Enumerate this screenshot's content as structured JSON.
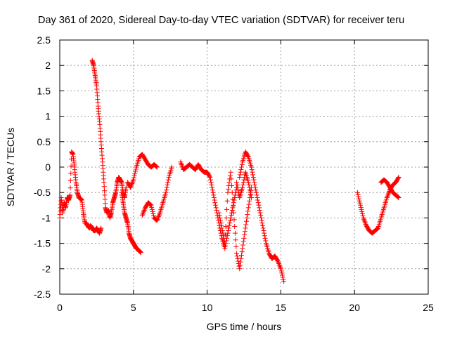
{
  "chart_data": {
    "type": "scatter",
    "title": "Day 361 of 2020, Sidereal Day-to-day VTEC variation (SDTVAR) for receiver teru",
    "xlabel": "GPS time / hours",
    "ylabel": "SDTVAR / TECUs",
    "xlim": [
      0,
      25
    ],
    "ylim": [
      -2.5,
      2.5
    ],
    "x_ticks": [
      0,
      5,
      10,
      15,
      20,
      25
    ],
    "x_tick_labels": [
      "0",
      "5",
      "10",
      "15",
      "20",
      "25"
    ],
    "y_ticks": [
      -2.5,
      -2,
      -1.5,
      -1,
      -0.5,
      0,
      0.5,
      1,
      1.5,
      2,
      2.5
    ],
    "y_tick_labels": [
      "-2.5",
      "-2",
      "-1.5",
      "-1",
      "-0.5",
      "0",
      "0.5",
      "1",
      "1.5",
      "2",
      "2.5"
    ],
    "grid": true,
    "marker": "+",
    "series": [
      {
        "name": "SDTVAR",
        "color": "#ff0000",
        "segments": [
          {
            "x": [
              0.0,
              0.1,
              0.2,
              0.3,
              0.4,
              0.5,
              0.6,
              0.7,
              0.8,
              0.9,
              1.0,
              1.1,
              1.2,
              1.3,
              1.4,
              1.5,
              1.6,
              1.7,
              1.8,
              1.9,
              2.0,
              2.1,
              2.2,
              2.3,
              2.4,
              2.5,
              2.6,
              2.7,
              2.8
            ],
            "y": [
              -1.0,
              -0.6,
              -0.9,
              -0.7,
              -0.8,
              -0.6,
              -0.65,
              -0.55,
              0.3,
              0.25,
              0.0,
              -0.3,
              -0.5,
              -0.6,
              -0.62,
              -0.65,
              -0.9,
              -1.1,
              -1.1,
              -1.15,
              -1.2,
              -1.15,
              -1.2,
              -1.25,
              -1.25,
              -1.2,
              -1.25,
              -1.3,
              -1.2
            ]
          },
          {
            "x": [
              2.2,
              2.3,
              2.4,
              2.5,
              2.6,
              2.7,
              2.8,
              2.9,
              3.0,
              3.1,
              3.2,
              3.3,
              3.4,
              3.5,
              3.6,
              3.7,
              3.8,
              3.9,
              4.0,
              4.1,
              4.2,
              4.3,
              4.4,
              4.5
            ],
            "y": [
              2.1,
              2.0,
              1.8,
              1.6,
              1.2,
              0.9,
              0.5,
              0.1,
              -0.3,
              -0.8,
              -0.9,
              -0.85,
              -1.0,
              -0.9,
              -0.7,
              -0.6,
              -0.5,
              -0.3,
              -0.2,
              -0.25,
              -0.3,
              -0.5,
              -0.6,
              -0.4
            ]
          },
          {
            "x": [
              4.2,
              4.3,
              4.4,
              4.5,
              4.6,
              4.7,
              4.8,
              4.9,
              5.0,
              5.1,
              5.2,
              5.3,
              5.4,
              5.5
            ],
            "y": [
              -0.5,
              -0.7,
              -0.9,
              -1.0,
              -1.1,
              -1.3,
              -1.4,
              -1.45,
              -1.5,
              -1.55,
              -1.6,
              -1.62,
              -1.65,
              -1.68
            ]
          },
          {
            "x": [
              4.6,
              4.8,
              5.0,
              5.2,
              5.4,
              5.6,
              5.8,
              6.0,
              6.2,
              6.4,
              6.6
            ],
            "y": [
              -0.3,
              -0.4,
              -0.25,
              0.0,
              0.2,
              0.25,
              0.15,
              0.05,
              0.0,
              0.05,
              0.0
            ]
          },
          {
            "x": [
              5.6,
              5.8,
              6.0,
              6.2,
              6.4,
              6.6,
              6.8,
              7.0,
              7.2,
              7.4,
              7.6
            ],
            "y": [
              -0.95,
              -0.8,
              -0.7,
              -0.75,
              -1.0,
              -1.05,
              -0.9,
              -0.7,
              -0.5,
              -0.2,
              0.0
            ]
          },
          {
            "x": [
              8.2,
              8.4,
              8.6,
              8.8,
              9.0,
              9.2,
              9.4,
              9.6,
              9.8,
              10.0,
              10.2,
              10.4,
              10.6,
              10.8,
              11.0,
              11.2,
              11.4,
              11.6,
              11.8,
              12.0
            ],
            "y": [
              0.1,
              -0.05,
              0.0,
              0.05,
              0.0,
              -0.05,
              0.05,
              -0.05,
              -0.1,
              -0.1,
              -0.2,
              -0.5,
              -0.8,
              -1.1,
              -1.4,
              -1.6,
              -1.3,
              -1.0,
              -0.7,
              -0.4
            ]
          },
          {
            "x": [
              10.8,
              11.0,
              11.2,
              11.4,
              11.6,
              11.8,
              12.0,
              12.2,
              12.4,
              12.6,
              12.8,
              13.0
            ],
            "y": [
              -0.9,
              -1.2,
              -1.5,
              -0.5,
              -0.1,
              -0.9,
              -1.7,
              -2.0,
              -1.6,
              -1.2,
              -0.8,
              -0.4
            ]
          },
          {
            "x": [
              12.2,
              12.4,
              12.6,
              12.8,
              13.0,
              13.2,
              13.4,
              13.6,
              13.8,
              14.0,
              14.2,
              14.4,
              14.6,
              14.8,
              15.0,
              15.2
            ],
            "y": [
              -0.2,
              0.1,
              0.3,
              0.2,
              0.0,
              -0.3,
              -0.6,
              -0.9,
              -1.2,
              -1.5,
              -1.7,
              -1.8,
              -1.75,
              -1.85,
              -2.0,
              -2.25
            ]
          },
          {
            "x": [
              12.0,
              12.2,
              12.4,
              12.6,
              12.8,
              13.0
            ],
            "y": [
              -0.3,
              -0.6,
              -0.4,
              -0.1,
              -0.3,
              -0.6
            ]
          },
          {
            "x": [
              20.2,
              20.4,
              20.6,
              20.8,
              21.0,
              21.2,
              21.4,
              21.6,
              21.8,
              22.0,
              22.2,
              22.4,
              22.6,
              22.8,
              23.0
            ],
            "y": [
              -0.5,
              -0.75,
              -1.0,
              -1.15,
              -1.25,
              -1.3,
              -1.25,
              -1.2,
              -1.0,
              -0.8,
              -0.6,
              -0.45,
              -0.35,
              -0.3,
              -0.2
            ]
          },
          {
            "x": [
              21.8,
              22.0,
              22.2,
              22.4,
              22.6,
              22.8,
              23.0
            ],
            "y": [
              -0.3,
              -0.25,
              -0.3,
              -0.4,
              -0.5,
              -0.55,
              -0.6
            ]
          }
        ]
      }
    ]
  }
}
